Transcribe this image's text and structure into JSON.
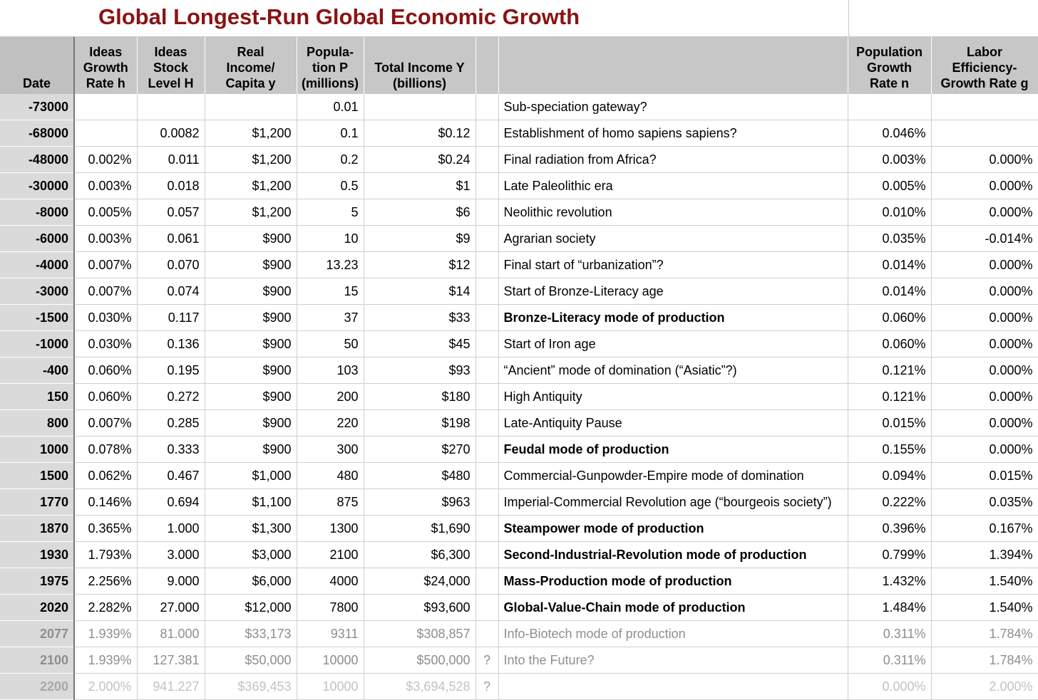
{
  "title": "Global Longest-Run Global Economic Growth",
  "columns": {
    "date": "Date",
    "ideas_growth": "Ideas\nGrowth\nRate h",
    "ideas_stock": "Ideas\nStock\nLevel H",
    "real_income": "Real\nIncome/\nCapita y",
    "population": "Popula-\ntion P\n(millions)",
    "total_income": "Total Income Y\n(billions)",
    "marker": "",
    "description": "",
    "pop_growth": "Population\nGrowth\nRate n",
    "labor_eff": "Labor\nEfficiency-\nGrowth Rate g"
  },
  "rows": [
    {
      "date": "-73000",
      "h": "",
      "H": "",
      "y": "",
      "P": "0.01",
      "Y": "",
      "q": "",
      "desc": "Sub-speciation gateway?",
      "n": "",
      "g": "",
      "bold": false,
      "fade": 0
    },
    {
      "date": "-68000",
      "h": "",
      "H": "0.0082",
      "y": "$1,200",
      "P": "0.1",
      "Y": "$0.12",
      "q": "",
      "desc": "Establishment of homo sapiens sapiens?",
      "n": "0.046%",
      "g": "",
      "bold": false,
      "fade": 0
    },
    {
      "date": "-48000",
      "h": "0.002%",
      "H": "0.011",
      "y": "$1,200",
      "P": "0.2",
      "Y": "$0.24",
      "q": "",
      "desc": "Final radiation from Africa?",
      "n": "0.003%",
      "g": "0.000%",
      "bold": false,
      "fade": 0
    },
    {
      "date": "-30000",
      "h": "0.003%",
      "H": "0.018",
      "y": "$1,200",
      "P": "0.5",
      "Y": "$1",
      "q": "",
      "desc": "Late Paleolithic era",
      "n": "0.005%",
      "g": "0.000%",
      "bold": false,
      "fade": 0
    },
    {
      "date": "-8000",
      "h": "0.005%",
      "H": "0.057",
      "y": "$1,200",
      "P": "5",
      "Y": "$6",
      "q": "",
      "desc": "Neolithic revolution",
      "n": "0.010%",
      "g": "0.000%",
      "bold": false,
      "fade": 0
    },
    {
      "date": "-6000",
      "h": "0.003%",
      "H": "0.061",
      "y": "$900",
      "P": "10",
      "Y": "$9",
      "q": "",
      "desc": "Agrarian society",
      "n": "0.035%",
      "g": "-0.014%",
      "bold": false,
      "fade": 0
    },
    {
      "date": "-4000",
      "h": "0.007%",
      "H": "0.070",
      "y": "$900",
      "P": "13.23",
      "Y": "$12",
      "q": "",
      "desc": "Final start of “urbanization”?",
      "n": "0.014%",
      "g": "0.000%",
      "bold": false,
      "fade": 0
    },
    {
      "date": "-3000",
      "h": "0.007%",
      "H": "0.074",
      "y": "$900",
      "P": "15",
      "Y": "$14",
      "q": "",
      "desc": "Start of Bronze-Literacy age",
      "n": "0.014%",
      "g": "0.000%",
      "bold": false,
      "fade": 0
    },
    {
      "date": "-1500",
      "h": "0.030%",
      "H": "0.117",
      "y": "$900",
      "P": "37",
      "Y": "$33",
      "q": "",
      "desc": "Bronze-Literacy mode of production",
      "n": "0.060%",
      "g": "0.000%",
      "bold": true,
      "fade": 0
    },
    {
      "date": "-1000",
      "h": "0.030%",
      "H": "0.136",
      "y": "$900",
      "P": "50",
      "Y": "$45",
      "q": "",
      "desc": "Start of Iron age",
      "n": "0.060%",
      "g": "0.000%",
      "bold": false,
      "fade": 0
    },
    {
      "date": "-400",
      "h": "0.060%",
      "H": "0.195",
      "y": "$900",
      "P": "103",
      "Y": "$93",
      "q": "",
      "desc": "“Ancient” mode of domination (“Asiatic”?)",
      "n": "0.121%",
      "g": "0.000%",
      "bold": false,
      "fade": 0
    },
    {
      "date": "150",
      "h": "0.060%",
      "H": "0.272",
      "y": "$900",
      "P": "200",
      "Y": "$180",
      "q": "",
      "desc": "High Antiquity",
      "n": "0.121%",
      "g": "0.000%",
      "bold": false,
      "fade": 0
    },
    {
      "date": "800",
      "h": "0.007%",
      "H": "0.285",
      "y": "$900",
      "P": "220",
      "Y": "$198",
      "q": "",
      "desc": "Late-Antiquity Pause",
      "n": "0.015%",
      "g": "0.000%",
      "bold": false,
      "fade": 0
    },
    {
      "date": "1000",
      "h": "0.078%",
      "H": "0.333",
      "y": "$900",
      "P": "300",
      "Y": "$270",
      "q": "",
      "desc": "Feudal mode of production",
      "n": "0.155%",
      "g": "0.000%",
      "bold": true,
      "fade": 0
    },
    {
      "date": "1500",
      "h": "0.062%",
      "H": "0.467",
      "y": "$1,000",
      "P": "480",
      "Y": "$480",
      "q": "",
      "desc": "Commercial-Gunpowder-Empire mode of domination",
      "n": "0.094%",
      "g": "0.015%",
      "bold": false,
      "fade": 0
    },
    {
      "date": "1770",
      "h": "0.146%",
      "H": "0.694",
      "y": "$1,100",
      "P": "875",
      "Y": "$963",
      "q": "",
      "desc": "Imperial-Commercial Revolution age (“bourgeois society”)",
      "n": "0.222%",
      "g": "0.035%",
      "bold": false,
      "fade": 0
    },
    {
      "date": "1870",
      "h": "0.365%",
      "H": "1.000",
      "y": "$1,300",
      "P": "1300",
      "Y": "$1,690",
      "q": "",
      "desc": "Steampower mode of production",
      "n": "0.396%",
      "g": "0.167%",
      "bold": true,
      "fade": 0
    },
    {
      "date": "1930",
      "h": "1.793%",
      "H": "3.000",
      "y": "$3,000",
      "P": "2100",
      "Y": "$6,300",
      "q": "",
      "desc": "Second-Industrial-Revolution mode of production",
      "n": "0.799%",
      "g": "1.394%",
      "bold": true,
      "fade": 0
    },
    {
      "date": "1975",
      "h": "2.256%",
      "H": "9.000",
      "y": "$6,000",
      "P": "4000",
      "Y": "$24,000",
      "q": "",
      "desc": "Mass-Production mode of production",
      "n": "1.432%",
      "g": "1.540%",
      "bold": true,
      "fade": 0
    },
    {
      "date": "2020",
      "h": "2.282%",
      "H": "27.000",
      "y": "$12,000",
      "P": "7800",
      "Y": "$93,600",
      "q": "",
      "desc": "Global-Value-Chain mode of production",
      "n": "1.484%",
      "g": "1.540%",
      "bold": true,
      "fade": 0
    },
    {
      "date": "2077",
      "h": "1.939%",
      "H": "81.000",
      "y": "$33,173",
      "P": "9311",
      "Y": "$308,857",
      "q": "",
      "desc": "Info-Biotech mode of production",
      "n": "0.311%",
      "g": "1.784%",
      "bold": false,
      "fade": 1
    },
    {
      "date": "2100",
      "h": "1.939%",
      "H": "127.381",
      "y": "$50,000",
      "P": "10000",
      "Y": "$500,000",
      "q": "?",
      "desc": "Into the Future?",
      "n": "0.311%",
      "g": "1.784%",
      "bold": false,
      "fade": 1
    },
    {
      "date": "2200",
      "h": "2.000%",
      "H": "941.227",
      "y": "$369,453",
      "P": "10000",
      "Y": "$3,694,528",
      "q": "?",
      "desc": "",
      "n": "0.000%",
      "g": "2.000%",
      "bold": false,
      "fade": 2
    }
  ]
}
